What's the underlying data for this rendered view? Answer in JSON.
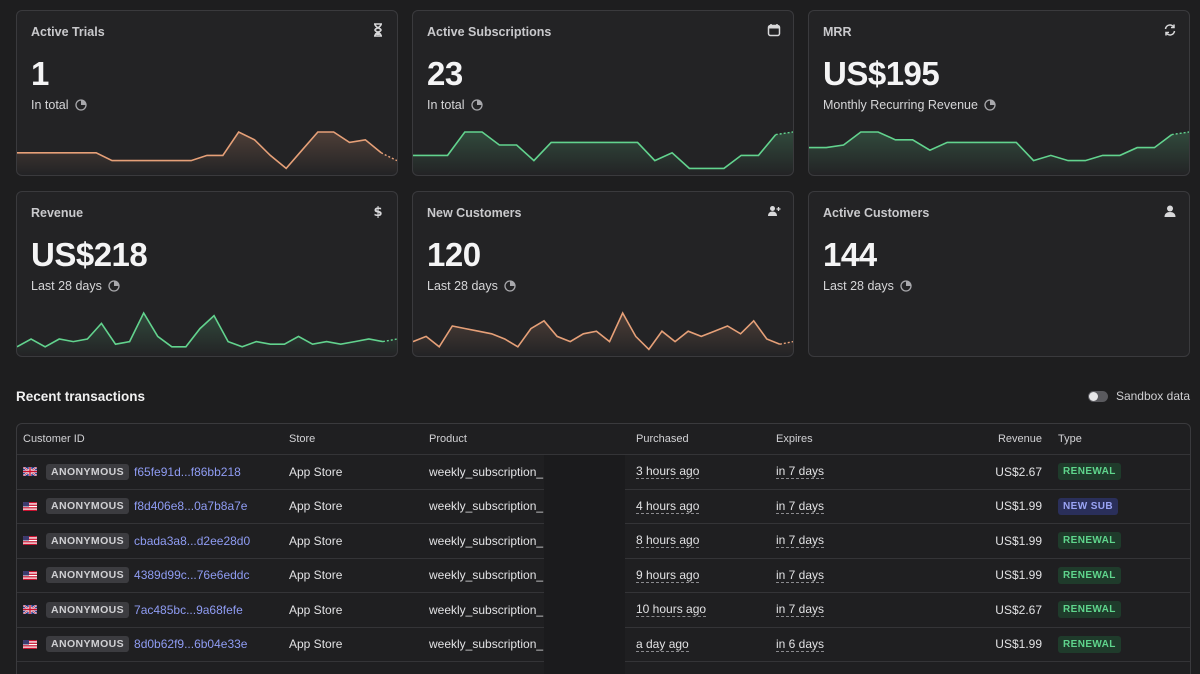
{
  "cards": [
    {
      "title": "Active Trials",
      "icon": "hourglass-icon",
      "value": "1",
      "sub": "In total",
      "color": "#e6a078",
      "spark": [
        0.35,
        0.35,
        0.35,
        0.35,
        0.35,
        0.35,
        0.2,
        0.2,
        0.2,
        0.2,
        0.2,
        0.2,
        0.3,
        0.3,
        0.75,
        0.6,
        0.3,
        0.05,
        0.4,
        0.75,
        0.75,
        0.55,
        0.6,
        0.35,
        0.2
      ]
    },
    {
      "title": "Active Subscriptions",
      "icon": "calendar-icon",
      "value": "23",
      "sub": "In total",
      "color": "#62d38e",
      "spark": [
        0.3,
        0.3,
        0.3,
        0.75,
        0.75,
        0.5,
        0.5,
        0.2,
        0.55,
        0.55,
        0.55,
        0.55,
        0.55,
        0.55,
        0.2,
        0.35,
        0.05,
        0.05,
        0.05,
        0.3,
        0.3,
        0.7,
        0.75
      ]
    },
    {
      "title": "MRR",
      "icon": "refresh-icon",
      "value": "US$195",
      "sub": "Monthly Recurring Revenue",
      "color": "#62d38e",
      "spark": [
        0.45,
        0.45,
        0.5,
        0.75,
        0.75,
        0.6,
        0.6,
        0.4,
        0.55,
        0.55,
        0.55,
        0.55,
        0.55,
        0.2,
        0.3,
        0.2,
        0.2,
        0.3,
        0.3,
        0.45,
        0.45,
        0.7,
        0.75
      ]
    },
    {
      "title": "Revenue",
      "icon": "dollar-icon",
      "value": "US$218",
      "sub": "Last 28 days",
      "color": "#62d38e",
      "spark": [
        0.1,
        0.25,
        0.1,
        0.25,
        0.2,
        0.25,
        0.55,
        0.15,
        0.2,
        0.75,
        0.3,
        0.1,
        0.1,
        0.45,
        0.7,
        0.2,
        0.1,
        0.2,
        0.15,
        0.15,
        0.3,
        0.15,
        0.2,
        0.15,
        0.2,
        0.25,
        0.2,
        0.25
      ]
    },
    {
      "title": "New Customers",
      "icon": "user-plus-icon",
      "value": "120",
      "sub": "Last 28 days",
      "color": "#e6a078",
      "spark": [
        0.2,
        0.3,
        0.1,
        0.5,
        0.45,
        0.4,
        0.35,
        0.25,
        0.1,
        0.45,
        0.6,
        0.3,
        0.2,
        0.35,
        0.4,
        0.2,
        0.75,
        0.3,
        0.05,
        0.4,
        0.2,
        0.4,
        0.3,
        0.4,
        0.5,
        0.35,
        0.6,
        0.25,
        0.15,
        0.2
      ]
    },
    {
      "title": "Active Customers",
      "icon": "user-icon",
      "value": "144",
      "sub": "Last 28 days",
      "color": "#62d38e",
      "spark": []
    }
  ],
  "section": {
    "title": "Recent transactions",
    "sandbox_label": "Sandbox data"
  },
  "table": {
    "headers": [
      "Customer ID",
      "Store",
      "Product",
      "Purchased",
      "Expires",
      "Revenue",
      "Type"
    ],
    "rows": [
      {
        "flag": "uk",
        "anon": "ANONYMOUS",
        "id": "f65fe91d...f86bb218",
        "store": "App Store",
        "product": "weekly_subscription_",
        "purchased": "3 hours ago",
        "expires": "in 7 days",
        "revenue": "US$2.67",
        "type": "RENEWAL"
      },
      {
        "flag": "us",
        "anon": "ANONYMOUS",
        "id": "f8d406e8...0a7b8a7e",
        "store": "App Store",
        "product": "weekly_subscription_",
        "purchased": "4 hours ago",
        "expires": "in 7 days",
        "revenue": "US$1.99",
        "type": "NEW SUB"
      },
      {
        "flag": "us",
        "anon": "ANONYMOUS",
        "id": "cbada3a8...d2ee28d0",
        "store": "App Store",
        "product": "weekly_subscription_",
        "purchased": "8 hours ago",
        "expires": "in 7 days",
        "revenue": "US$1.99",
        "type": "RENEWAL"
      },
      {
        "flag": "us",
        "anon": "ANONYMOUS",
        "id": "4389d99c...76e6eddc",
        "store": "App Store",
        "product": "weekly_subscription_",
        "purchased": "9 hours ago",
        "expires": "in 7 days",
        "revenue": "US$1.99",
        "type": "RENEWAL"
      },
      {
        "flag": "uk",
        "anon": "ANONYMOUS",
        "id": "7ac485bc...9a68fefe",
        "store": "App Store",
        "product": "weekly_subscription_",
        "purchased": "10 hours ago",
        "expires": "in 7 days",
        "revenue": "US$2.67",
        "type": "RENEWAL"
      },
      {
        "flag": "us",
        "anon": "ANONYMOUS",
        "id": "8d0b62f9...6b04e33e",
        "store": "App Store",
        "product": "weekly_subscription_",
        "purchased": "a day ago",
        "expires": "in 6 days",
        "revenue": "US$1.99",
        "type": "RENEWAL"
      }
    ]
  }
}
